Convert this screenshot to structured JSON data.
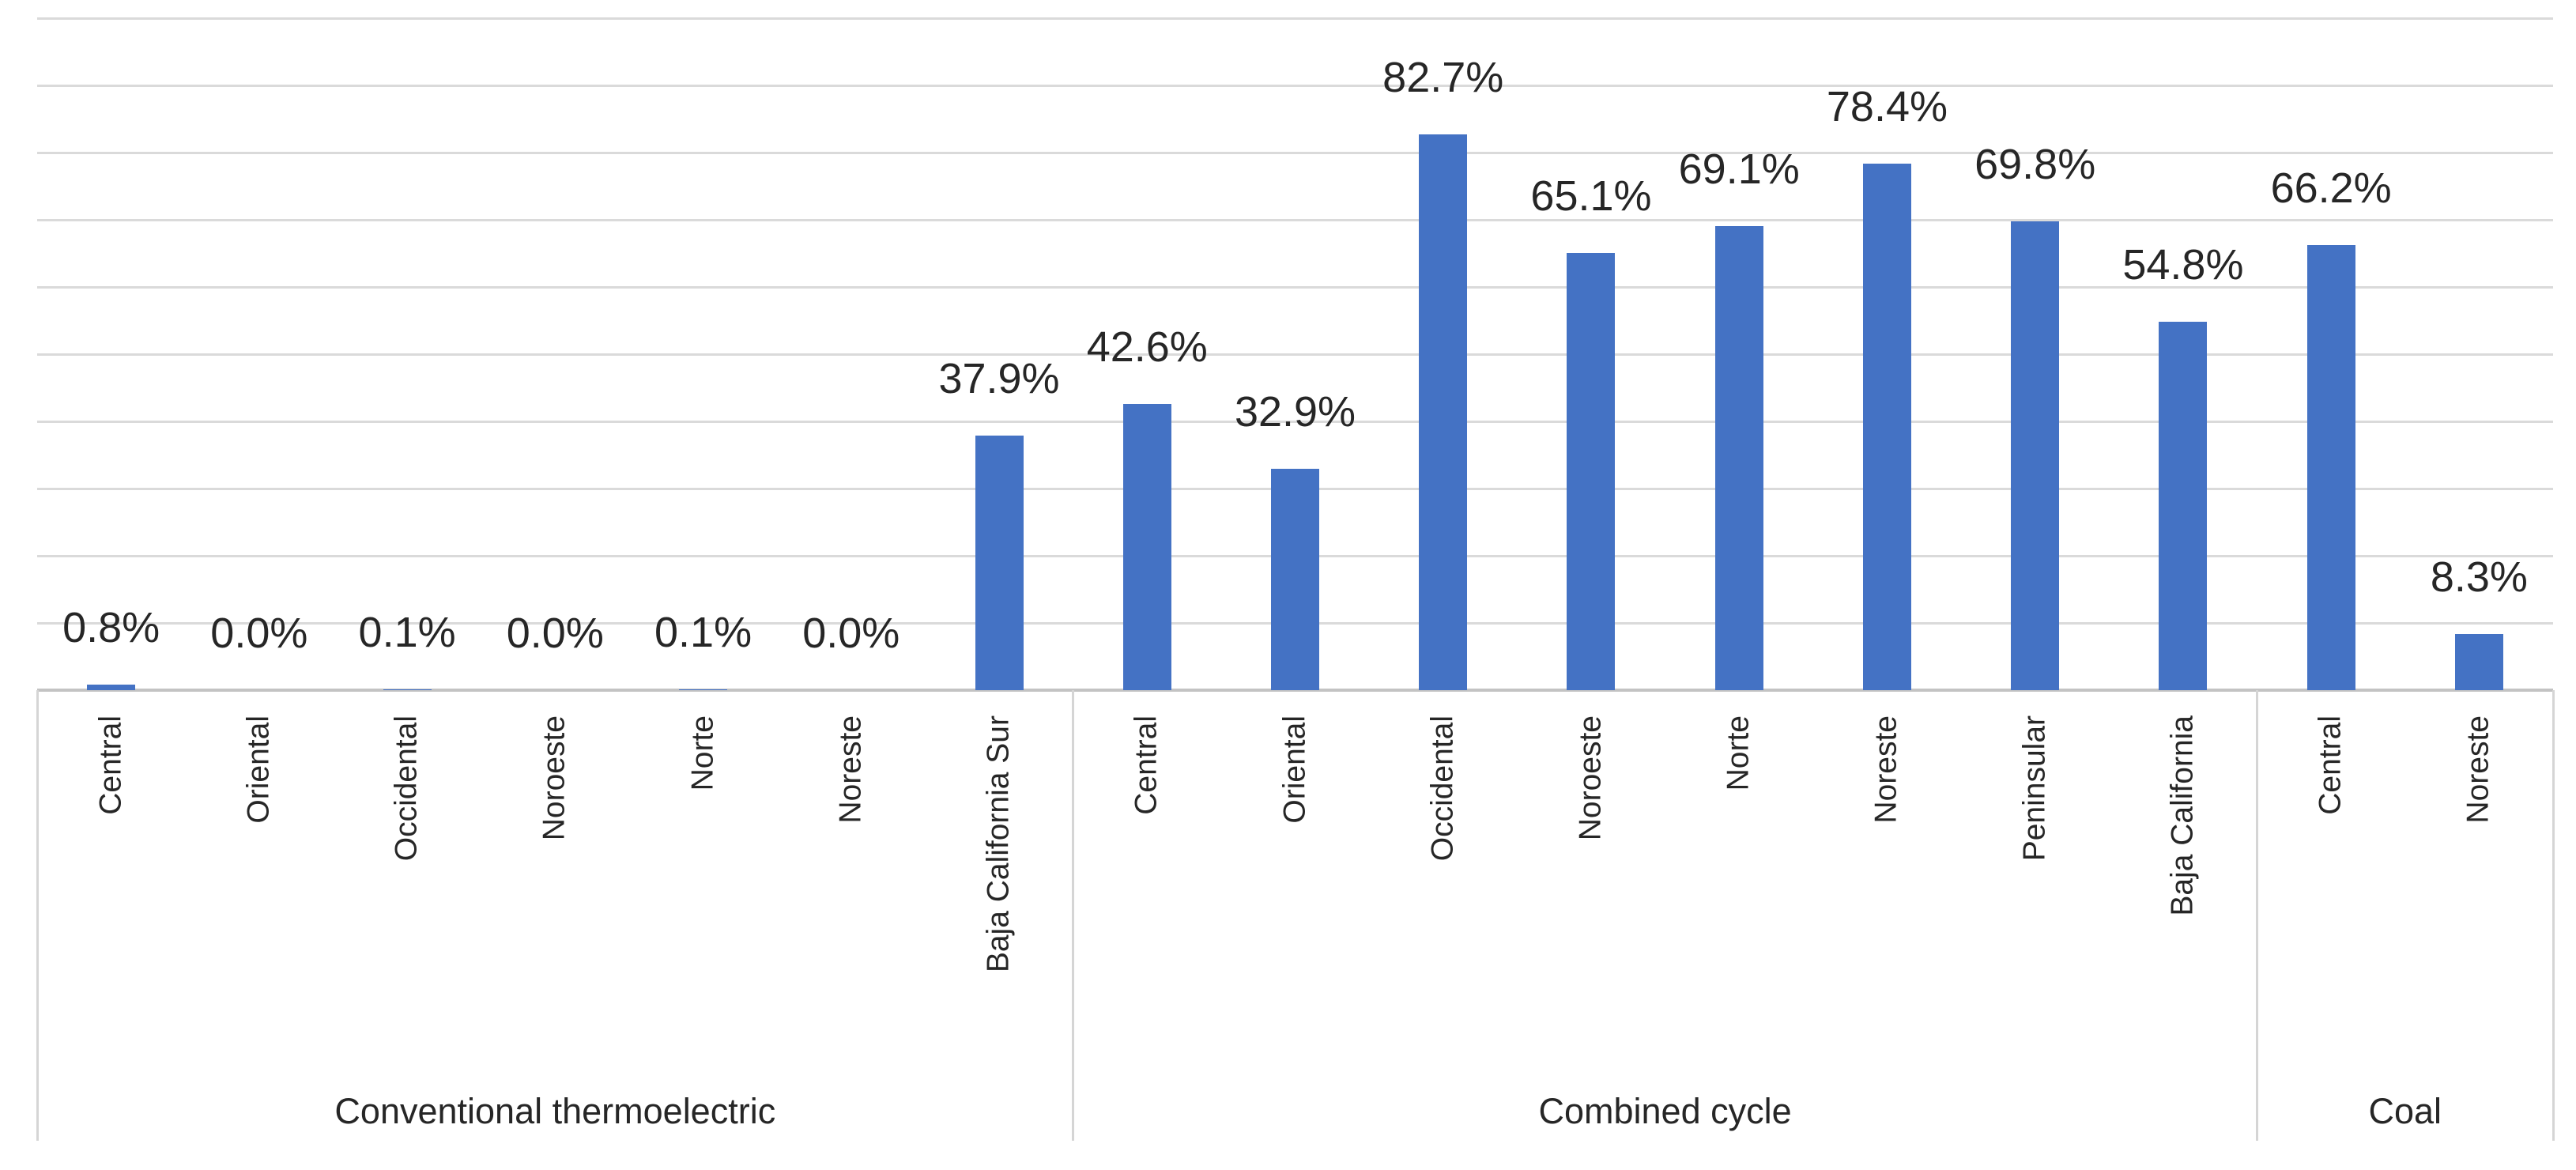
{
  "chart_data": {
    "type": "bar",
    "title": "",
    "xlabel": "",
    "ylabel": "",
    "ylim": [
      0,
      100
    ],
    "gridline_step_pct": 10,
    "grid": true,
    "legend": null,
    "bar_color": "#4472C4",
    "gridline_color": "#dadada",
    "axis_line_color": "#c3c3c3",
    "label_text_color": "#262626",
    "value_suffix": "%",
    "groups": [
      {
        "label": "Conventional thermoelectric",
        "categories": [
          "Central",
          "Oriental",
          "Occidental",
          "Noroeste",
          "Norte",
          "Noreste",
          "Baja California Sur"
        ],
        "values": [
          0.8,
          0.0,
          0.1,
          0.0,
          0.1,
          0.0,
          37.9
        ],
        "value_labels": [
          "0.8%",
          "0.0%",
          "0.1%",
          "0.0%",
          "0.1%",
          "0.0%",
          "37.9%"
        ]
      },
      {
        "label": "Combined cycle",
        "categories": [
          "Central",
          "Oriental",
          "Occidental",
          "Noroeste",
          "Norte",
          "Noreste",
          "Peninsular",
          "Baja California"
        ],
        "values": [
          42.6,
          32.9,
          82.7,
          65.1,
          69.1,
          78.4,
          69.8,
          54.8
        ],
        "value_labels": [
          "42.6%",
          "32.9%",
          "82.7%",
          "65.1%",
          "69.1%",
          "78.4%",
          "69.8%",
          "54.8%"
        ]
      },
      {
        "label": "Coal",
        "categories": [
          "Central",
          "Noreste"
        ],
        "values": [
          66.2,
          8.3
        ],
        "value_labels": [
          "66.2%",
          "8.3%"
        ]
      }
    ]
  },
  "layout_note": "clustered column chart with multi-level category axis, data labels outside end, no y-axis labels"
}
